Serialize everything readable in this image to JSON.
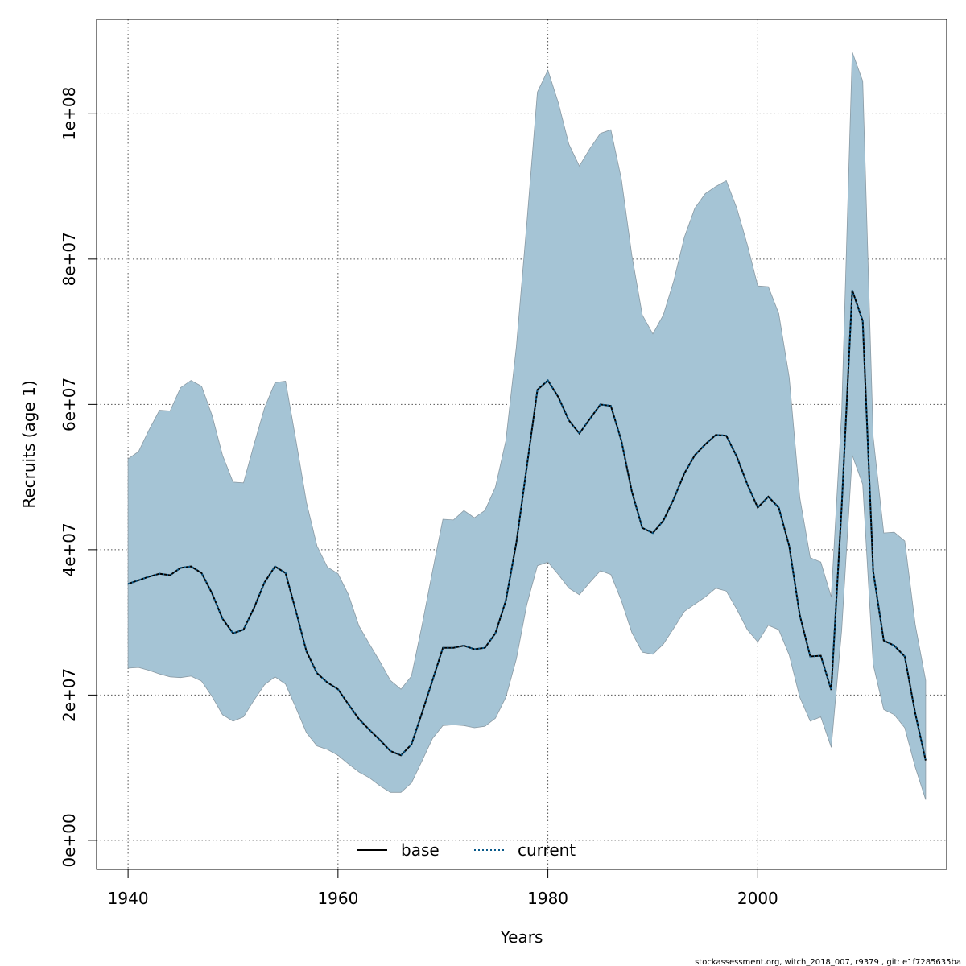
{
  "chart_data": {
    "type": "area",
    "xlabel": "Years",
    "ylabel": "Recruits (age 1)",
    "xlim": [
      1937,
      2018
    ],
    "ylim": [
      -4000000,
      113000000
    ],
    "x_ticks": [
      1940,
      1960,
      1980,
      2000
    ],
    "x_tick_labels": [
      "1940",
      "1960",
      "1980",
      "2000"
    ],
    "y_ticks": [
      0,
      20000000,
      40000000,
      60000000,
      80000000,
      100000000
    ],
    "y_tick_labels": [
      "0e+00",
      "2e+07",
      "4e+07",
      "6e+07",
      "8e+07",
      "1e+08"
    ],
    "grid": true,
    "legend_position": "bottom-center",
    "colors": {
      "band_fill": "#a5c4d5",
      "band_edge": "#8a9aa4",
      "base_line": "#000000",
      "current_line": "#0a5a8a",
      "grid": "#555555"
    },
    "x": [
      1940,
      1941,
      1942,
      1943,
      1944,
      1945,
      1946,
      1947,
      1948,
      1949,
      1950,
      1951,
      1952,
      1953,
      1954,
      1955,
      1956,
      1957,
      1958,
      1959,
      1960,
      1961,
      1962,
      1963,
      1964,
      1965,
      1966,
      1967,
      1968,
      1969,
      1970,
      1971,
      1972,
      1973,
      1974,
      1975,
      1976,
      1977,
      1978,
      1979,
      1980,
      1981,
      1982,
      1983,
      1984,
      1985,
      1986,
      1987,
      1988,
      1989,
      1990,
      1991,
      1992,
      1993,
      1994,
      1995,
      1996,
      1997,
      1998,
      1999,
      2000,
      2001,
      2002,
      2003,
      2004,
      2005,
      2006,
      2007,
      2008,
      2009,
      2010,
      2011,
      2012,
      2013,
      2014,
      2015,
      2016
    ],
    "series": [
      {
        "name": "base",
        "style": "solid",
        "values": [
          35300000,
          35800000,
          36300000,
          36700000,
          36500000,
          37500000,
          37700000,
          36800000,
          34000000,
          30500000,
          28500000,
          29000000,
          32000000,
          35500000,
          37700000,
          36800000,
          31500000,
          26000000,
          23000000,
          21700000,
          20800000,
          18700000,
          16700000,
          15200000,
          13800000,
          12300000,
          11700000,
          13200000,
          17500000,
          22000000,
          26500000,
          26500000,
          26800000,
          26300000,
          26500000,
          28500000,
          33000000,
          41000000,
          51500000,
          62000000,
          63300000,
          61000000,
          57800000,
          56000000,
          58000000,
          60000000,
          59800000,
          55000000,
          48000000,
          43000000,
          42300000,
          44000000,
          47000000,
          50500000,
          53000000,
          54500000,
          55800000,
          55700000,
          52800000,
          49000000,
          45800000,
          47300000,
          45800000,
          40500000,
          31000000,
          25300000,
          25400000,
          20700000,
          46000000,
          75700000,
          71500000,
          37000000,
          27500000,
          26800000,
          25300000,
          17500000,
          11000000
        ]
      },
      {
        "name": "current",
        "style": "dotted",
        "values": [
          35300000,
          35800000,
          36300000,
          36700000,
          36500000,
          37500000,
          37700000,
          36800000,
          34000000,
          30500000,
          28500000,
          29000000,
          32000000,
          35500000,
          37700000,
          36800000,
          31500000,
          26000000,
          23000000,
          21700000,
          20800000,
          18700000,
          16700000,
          15200000,
          13800000,
          12300000,
          11700000,
          13200000,
          17500000,
          22000000,
          26500000,
          26500000,
          26800000,
          26300000,
          26500000,
          28500000,
          33000000,
          41000000,
          51500000,
          62000000,
          63300000,
          61000000,
          57800000,
          56000000,
          58000000,
          60000000,
          59800000,
          55000000,
          48000000,
          43000000,
          42300000,
          44000000,
          47000000,
          50500000,
          53000000,
          54500000,
          55800000,
          55700000,
          52800000,
          49000000,
          45800000,
          47300000,
          45800000,
          40500000,
          31000000,
          25300000,
          25400000,
          20700000,
          46000000,
          75700000,
          71500000,
          37000000,
          27500000,
          26800000,
          25300000,
          17500000,
          11000000
        ]
      }
    ],
    "band": {
      "upper": [
        52500000,
        53500000,
        56500000,
        59200000,
        59100000,
        62300000,
        63300000,
        62500000,
        58500000,
        53000000,
        49300000,
        49200000,
        54500000,
        59500000,
        63000000,
        63200000,
        55000000,
        46500000,
        40500000,
        37600000,
        36700000,
        33800000,
        29500000,
        27000000,
        24600000,
        22000000,
        20800000,
        22600000,
        29500000,
        37000000,
        44200000,
        44100000,
        45400000,
        44400000,
        45400000,
        48600000,
        55000000,
        68000000,
        85000000,
        103000000,
        106000000,
        101500000,
        95800000,
        92800000,
        95200000,
        97300000,
        97800000,
        91000000,
        80500000,
        72300000,
        69700000,
        72300000,
        77000000,
        83000000,
        87000000,
        89000000,
        90000000,
        90800000,
        87000000,
        82000000,
        76300000,
        76200000,
        72500000,
        63700000,
        47200000,
        38900000,
        38300000,
        33500000,
        59000000,
        108500000,
        104500000,
        55500000,
        42300000,
        42400000,
        41200000,
        29700000,
        22000000
      ],
      "lower": [
        23700000,
        23800000,
        23400000,
        22900000,
        22500000,
        22400000,
        22600000,
        21900000,
        19800000,
        17300000,
        16400000,
        17000000,
        19300000,
        21400000,
        22500000,
        21500000,
        18200000,
        14800000,
        13000000,
        12500000,
        11700000,
        10500000,
        9400000,
        8600000,
        7500000,
        6600000,
        6600000,
        7900000,
        10900000,
        14000000,
        15800000,
        15900000,
        15800000,
        15500000,
        15700000,
        16800000,
        19700000,
        25000000,
        32500000,
        37800000,
        38300000,
        36600000,
        34700000,
        33800000,
        35500000,
        37100000,
        36600000,
        33000000,
        28600000,
        25900000,
        25600000,
        27000000,
        29200000,
        31500000,
        32500000,
        33500000,
        34700000,
        34300000,
        31800000,
        29000000,
        27300000,
        29600000,
        29000000,
        25500000,
        19700000,
        16400000,
        17000000,
        12800000,
        29000000,
        53000000,
        49000000,
        24200000,
        18000000,
        17300000,
        15500000,
        10100000,
        5600000
      ]
    },
    "legend": [
      {
        "label": "base",
        "style": "solid"
      },
      {
        "label": "current",
        "style": "dotted"
      }
    ],
    "footer": "stockassessment.org, witch_2018_007, r9379 , git: e1f7285635ba"
  }
}
